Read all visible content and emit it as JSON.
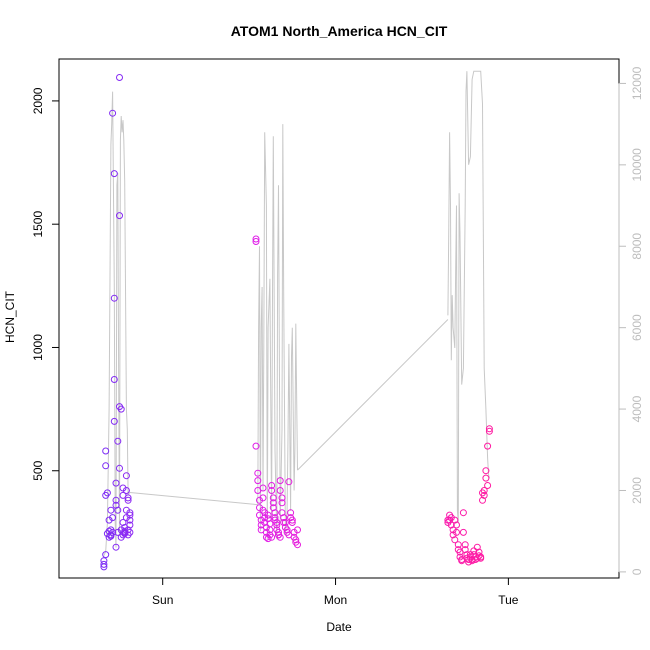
{
  "chart_data": {
    "type": "scatter",
    "title": "ATOM1 North_America HCN_CIT",
    "xlabel": "Date",
    "ylabel": "HCN_CIT",
    "x_ticks": [
      "Sun",
      "Mon",
      "Tue"
    ],
    "y_ticks": [
      500,
      1000,
      1500,
      2000
    ],
    "y_right_ticks": [
      0,
      2000,
      4000,
      6000,
      8000,
      10000,
      12000
    ],
    "xlim_days": [
      -0.6,
      2.64
    ],
    "ylim": [
      65,
      2170
    ],
    "ylim_right": [
      -150,
      12600
    ],
    "colors": {
      "start": "#7b2cf5",
      "mid": "#e01ee8",
      "end": "#ff1aa0",
      "line": "#c8c8c8",
      "axis": "#000000",
      "right_axis": "#bdbdbd"
    },
    "series": [
      {
        "values_x_days": [
          -0.34,
          -0.34,
          -0.34,
          -0.33,
          -0.33,
          -0.33,
          -0.33,
          -0.32,
          -0.32,
          -0.31,
          -0.31,
          -0.31,
          -0.3,
          -0.3,
          -0.3,
          -0.3,
          -0.29,
          -0.29,
          -0.29,
          -0.28,
          -0.28,
          -0.28,
          -0.28,
          -0.27,
          -0.27,
          -0.27,
          -0.27,
          -0.26,
          -0.26,
          -0.26,
          -0.25,
          -0.25,
          -0.25,
          -0.25,
          -0.24,
          -0.24,
          -0.24,
          -0.23,
          -0.23,
          -0.23,
          -0.23,
          -0.22,
          -0.22,
          -0.22,
          -0.22,
          -0.21,
          -0.21,
          -0.21,
          -0.21,
          -0.2,
          -0.2,
          -0.2,
          -0.2,
          -0.19,
          -0.19,
          -0.19,
          -0.19,
          -0.19
        ],
        "values_y": [
          110,
          120,
          135,
          160,
          400,
          520,
          580,
          410,
          245,
          230,
          300,
          255,
          235,
          240,
          340,
          260,
          310,
          250,
          1950,
          1705,
          1200,
          870,
          700,
          450,
          380,
          360,
          190,
          340,
          250,
          620,
          510,
          760,
          1535,
          2095,
          750,
          230,
          260,
          400,
          240,
          430,
          290,
          250,
          255,
          245,
          270,
          480,
          420,
          310,
          340,
          260,
          240,
          390,
          380,
          330,
          320,
          300,
          280,
          250
        ]
      },
      {
        "values_x_days": [
          0.54,
          0.54,
          0.54,
          0.55,
          0.55,
          0.55,
          0.56,
          0.56,
          0.56,
          0.57,
          0.57,
          0.57,
          0.58,
          0.58,
          0.58,
          0.59,
          0.59,
          0.59,
          0.6,
          0.6,
          0.6,
          0.61,
          0.61,
          0.61,
          0.62,
          0.62,
          0.62,
          0.63,
          0.63,
          0.63,
          0.64,
          0.64,
          0.64,
          0.65,
          0.65,
          0.65,
          0.66,
          0.66,
          0.66,
          0.67,
          0.67,
          0.67,
          0.68,
          0.68,
          0.68,
          0.69,
          0.69,
          0.69,
          0.7,
          0.7,
          0.71,
          0.71,
          0.72,
          0.72,
          0.73,
          0.73,
          0.74,
          0.74,
          0.75,
          0.75,
          0.76,
          0.76,
          0.77,
          0.77,
          0.78,
          0.78
        ],
        "values_y": [
          1440,
          1430,
          600,
          490,
          460,
          420,
          380,
          350,
          320,
          300,
          280,
          260,
          430,
          390,
          340,
          330,
          310,
          290,
          270,
          250,
          230,
          225,
          320,
          305,
          285,
          260,
          240,
          230,
          440,
          420,
          390,
          370,
          350,
          330,
          310,
          300,
          290,
          280,
          260,
          250,
          240,
          240,
          230,
          460,
          420,
          390,
          370,
          330,
          310,
          290,
          290,
          270,
          260,
          250,
          455,
          240,
          330,
          310,
          300,
          290,
          250,
          230,
          220,
          210,
          200,
          260
        ]
      },
      {
        "values_x_days": [
          1.65,
          1.65,
          1.66,
          1.66,
          1.67,
          1.67,
          1.68,
          1.68,
          1.69,
          1.69,
          1.7,
          1.7,
          1.71,
          1.71,
          1.72,
          1.72,
          1.73,
          1.73,
          1.74,
          1.74,
          1.75,
          1.75,
          1.76,
          1.76,
          1.77,
          1.77,
          1.78,
          1.78,
          1.79,
          1.79,
          1.8,
          1.8,
          1.81,
          1.81,
          1.82,
          1.82,
          1.83,
          1.83,
          1.84,
          1.84,
          1.85,
          1.85,
          1.86,
          1.86,
          1.87,
          1.87,
          1.88,
          1.88,
          1.89,
          1.89
        ],
        "values_y": [
          300,
          290,
          320,
          300,
          310,
          280,
          260,
          240,
          220,
          300,
          280,
          250,
          200,
          180,
          170,
          150,
          140,
          135,
          250,
          330,
          200,
          180,
          160,
          145,
          140,
          130,
          160,
          150,
          140,
          135,
          175,
          160,
          150,
          140,
          145,
          190,
          170,
          155,
          150,
          145,
          380,
          410,
          420,
          400,
          500,
          470,
          440,
          600,
          670,
          660
        ]
      }
    ],
    "line_series": {
      "note_scale": "right",
      "segments": [
        {
          "x_days": [
            -0.34,
            -0.33,
            -0.32,
            -0.31,
            -0.3,
            -0.295,
            -0.29,
            -0.28,
            -0.275,
            -0.27,
            -0.265,
            -0.26,
            -0.255,
            -0.25,
            -0.245,
            -0.24,
            -0.235,
            -0.23,
            -0.225,
            -0.22,
            -0.215,
            -0.21,
            -0.205,
            -0.2,
            -0.19
          ],
          "y": [
            400,
            500,
            1200,
            4000,
            10500,
            11000,
            11800,
            7000,
            1200,
            600,
            9500,
            9800,
            5000,
            900,
            10600,
            11200,
            10800,
            11100,
            10600,
            9600,
            7000,
            4000,
            3500,
            1900,
            1950
          ]
        },
        {
          "x_days": [
            -0.19,
            0.55
          ],
          "y": [
            1950,
            1650
          ]
        },
        {
          "x_days": [
            0.55,
            0.555,
            0.56,
            0.565,
            0.57,
            0.575,
            0.58,
            0.585,
            0.59,
            0.6,
            0.605,
            0.61,
            0.62,
            0.63,
            0.635,
            0.64,
            0.65,
            0.66,
            0.665,
            0.67,
            0.68,
            0.69,
            0.695,
            0.7,
            0.71,
            0.72,
            0.725,
            0.73,
            0.74,
            0.745,
            0.75,
            0.76,
            0.765,
            0.77,
            0.78
          ],
          "y": [
            1650,
            6000,
            8000,
            1000,
            6000,
            7000,
            2000,
            5500,
            10800,
            9000,
            800,
            6000,
            7200,
            1300,
            6800,
            10700,
            3000,
            800,
            7300,
            9500,
            1200,
            3500,
            11000,
            6800,
            900,
            1500,
            3300,
            5600,
            1500,
            5300,
            6000,
            2000,
            3000,
            6100,
            2500
          ]
        },
        {
          "x_days": [
            0.78,
            1.65
          ],
          "y": [
            2500,
            6200
          ]
        },
        {
          "x_days": [
            1.65,
            1.655,
            1.66,
            1.665,
            1.67,
            1.675,
            1.68,
            1.69,
            1.695,
            1.7,
            1.705,
            1.71,
            1.715,
            1.72,
            1.73,
            1.74,
            1.75,
            1.755,
            1.76,
            1.77,
            1.78,
            1.79,
            1.8,
            1.81,
            1.82,
            1.83,
            1.84,
            1.85,
            1.86,
            1.87,
            1.88,
            1.885,
            1.89
          ],
          "y": [
            6300,
            8500,
            10800,
            9000,
            5200,
            6800,
            6000,
            5500,
            7500,
            9000,
            1500,
            1200,
            9300,
            8300,
            4600,
            5000,
            9000,
            11800,
            12300,
            10000,
            10200,
            12100,
            12300,
            12300,
            12300,
            12300,
            12300,
            11500,
            5000,
            4000,
            2800,
            2400,
            2300
          ]
        }
      ]
    }
  }
}
